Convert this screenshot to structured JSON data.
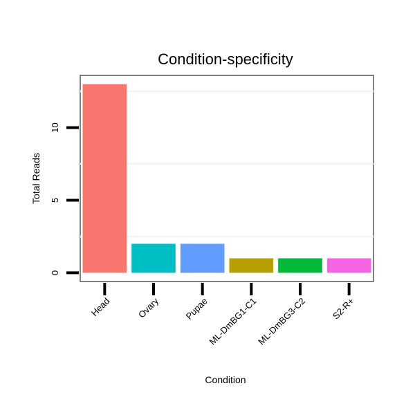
{
  "chart_data": {
    "type": "bar",
    "title": "Condition-specificity",
    "xlabel": "Condition",
    "ylabel": "Total Reads",
    "categories": [
      "Head",
      "Ovary",
      "Pupae",
      "ML-DmBG1-C1",
      "ML-DmBG3-C2",
      "S2-R+"
    ],
    "values": [
      13,
      2,
      2,
      1,
      1,
      1
    ],
    "colors": [
      "#F8766D",
      "#00BFC4",
      "#619CFF",
      "#B79F00",
      "#00BA38",
      "#F564E3"
    ],
    "ylim": [
      -0.6,
      13.6
    ],
    "yticks": [
      0,
      5,
      10
    ],
    "grid": true,
    "legend": "none"
  }
}
